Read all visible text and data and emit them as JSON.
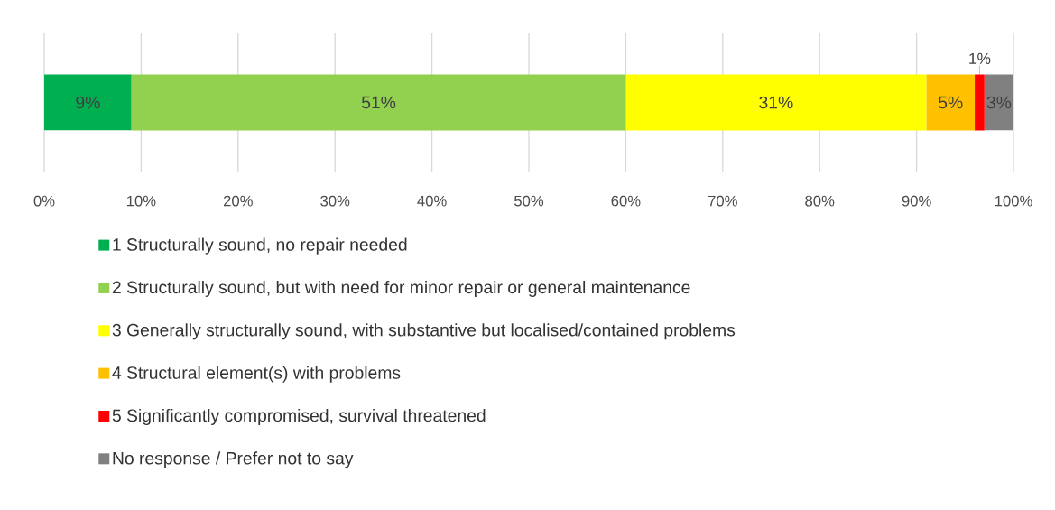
{
  "chart_data": {
    "type": "bar",
    "orientation": "horizontal",
    "stacked": true,
    "categories": [
      null
    ],
    "series": [
      {
        "name": "1 Structurally sound, no repair needed",
        "color": "#00b050",
        "values": [
          9
        ],
        "value_labels": [
          "9%"
        ]
      },
      {
        "name": "2 Structurally sound, but with need for minor repair or general maintenance",
        "color": "#92d050",
        "values": [
          51
        ],
        "value_labels": [
          "51%"
        ]
      },
      {
        "name": "3 Generally structurally sound, with substantive but localised/contained problems",
        "color": "#ffff00",
        "values": [
          31
        ],
        "value_labels": [
          "31%"
        ]
      },
      {
        "name": "4 Structural element(s) with problems",
        "color": "#ffc000",
        "values": [
          5
        ],
        "value_labels": [
          "5%"
        ]
      },
      {
        "name": "5 Significantly compromised, survival threatened",
        "color": "#ff0000",
        "values": [
          1
        ],
        "value_labels": [
          "1%"
        ]
      },
      {
        "name": "No response / Prefer not to say",
        "color": "#808080",
        "values": [
          3
        ],
        "value_labels": [
          "3%"
        ]
      }
    ],
    "xlim": [
      0,
      100
    ],
    "xticks": [
      {
        "value": 0,
        "label": "0%"
      },
      {
        "value": 10,
        "label": "10%"
      },
      {
        "value": 20,
        "label": "20%"
      },
      {
        "value": 30,
        "label": "30%"
      },
      {
        "value": 40,
        "label": "40%"
      },
      {
        "value": 50,
        "label": "50%"
      },
      {
        "value": 60,
        "label": "60%"
      },
      {
        "value": 70,
        "label": "70%"
      },
      {
        "value": 80,
        "label": "80%"
      },
      {
        "value": 90,
        "label": "90%"
      },
      {
        "value": 100,
        "label": "100%"
      }
    ],
    "grid": "x",
    "legend": "bottom"
  }
}
